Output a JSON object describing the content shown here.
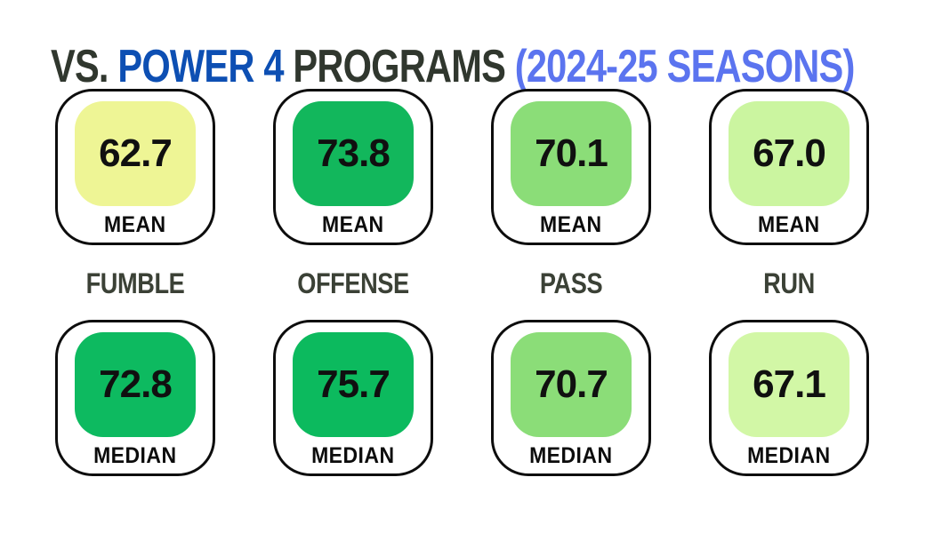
{
  "title": {
    "segments": [
      {
        "text": "VS. ",
        "color": "#30372e"
      },
      {
        "text": "POWER 4 ",
        "color": "#0d4fb3"
      },
      {
        "text": "PROGRAMS ",
        "color": "#30372e"
      },
      {
        "text": "(2024-25 SEASONS)",
        "color": "#5b74ef"
      }
    ]
  },
  "categories": [
    "FUMBLE",
    "OFFENSE",
    "PASS",
    "RUN"
  ],
  "cards": [
    {
      "value": "62.7",
      "stat": "MEAN",
      "category": "FUMBLE",
      "tile_color": "#eef595"
    },
    {
      "value": "73.8",
      "stat": "MEAN",
      "category": "OFFENSE",
      "tile_color": "#12b75c"
    },
    {
      "value": "70.1",
      "stat": "MEAN",
      "category": "PASS",
      "tile_color": "#8bdd78"
    },
    {
      "value": "67.0",
      "stat": "MEAN",
      "category": "RUN",
      "tile_color": "#cbf5a0"
    },
    {
      "value": "72.8",
      "stat": "MEDIAN",
      "category": "FUMBLE",
      "tile_color": "#0dba60"
    },
    {
      "value": "75.7",
      "stat": "MEDIAN",
      "category": "OFFENSE",
      "tile_color": "#0cba5e"
    },
    {
      "value": "70.7",
      "stat": "MEDIAN",
      "category": "PASS",
      "tile_color": "#8bdd78"
    },
    {
      "value": "67.1",
      "stat": "MEDIAN",
      "category": "RUN",
      "tile_color": "#d2f7a6"
    }
  ],
  "chart_data": {
    "type": "table",
    "title": "VS. POWER 4 PROGRAMS (2024-25 SEASONS)",
    "categories": [
      "FUMBLE",
      "OFFENSE",
      "PASS",
      "RUN"
    ],
    "series": [
      {
        "name": "MEAN",
        "values": [
          62.7,
          73.8,
          70.1,
          67.0
        ]
      },
      {
        "name": "MEDIAN",
        "values": [
          72.8,
          75.7,
          70.7,
          67.1
        ]
      }
    ],
    "cell_colors": {
      "MEAN": [
        "#eef595",
        "#12b75c",
        "#8bdd78",
        "#cbf5a0"
      ],
      "MEDIAN": [
        "#0dba60",
        "#0cba5e",
        "#8bdd78",
        "#d2f7a6"
      ]
    },
    "legend_position": "none",
    "grid": false
  }
}
